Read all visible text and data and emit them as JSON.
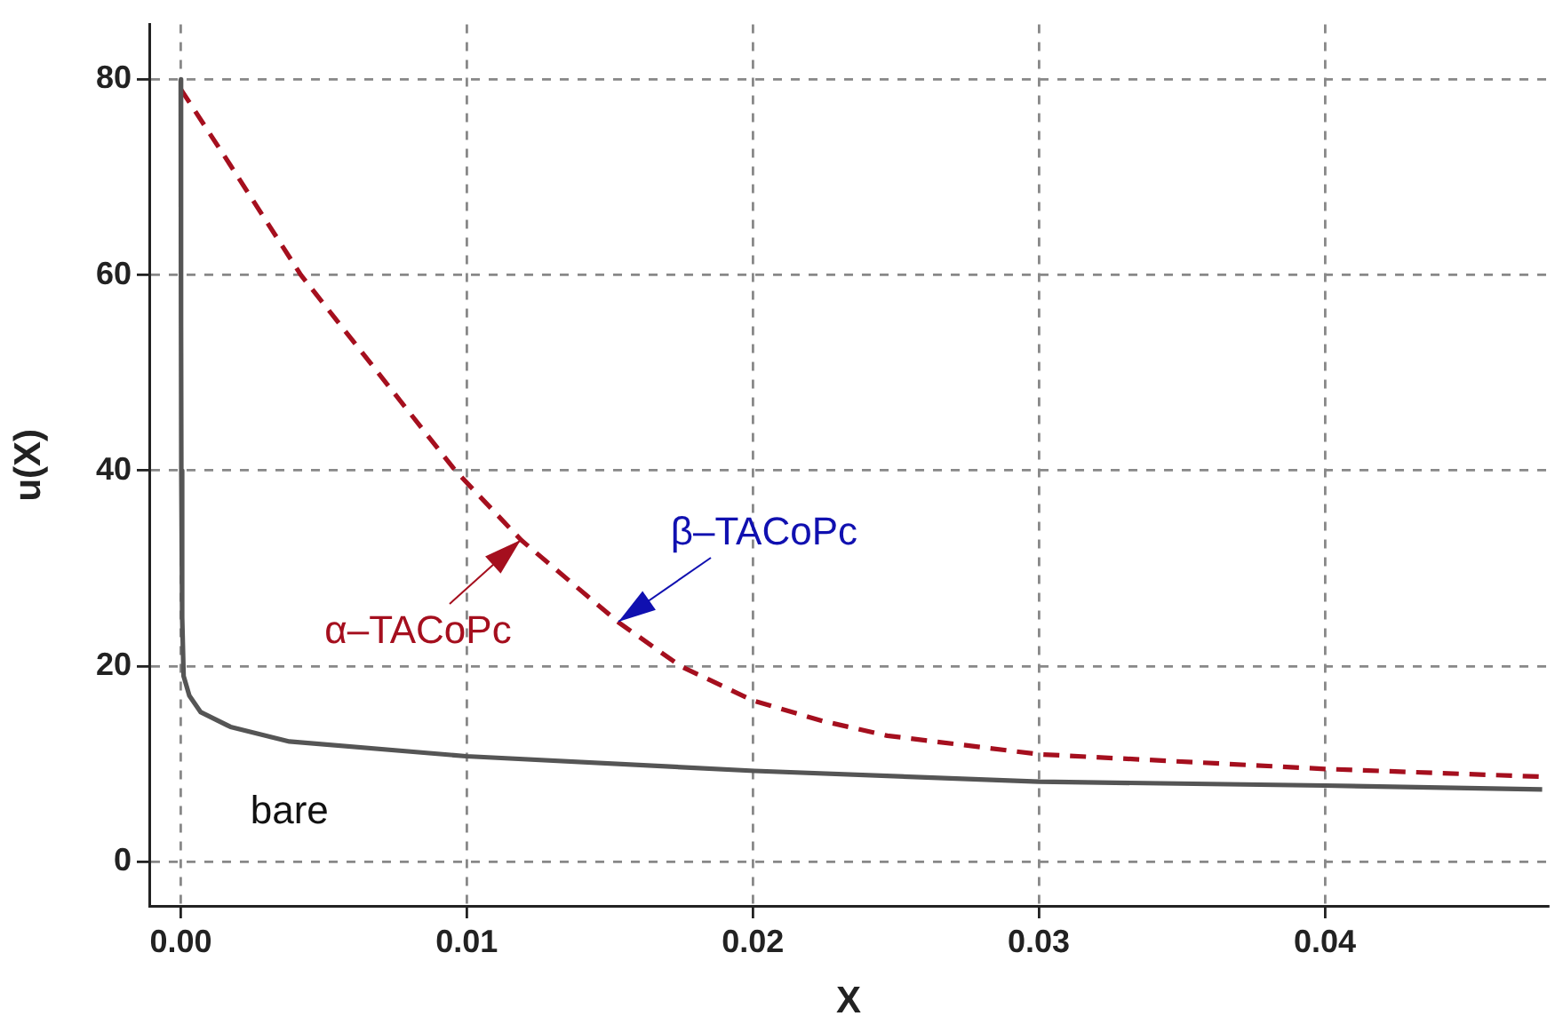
{
  "chart_data": {
    "type": "line",
    "xlabel": "X",
    "ylabel": "u(X)",
    "xlim": [
      -0.0011,
      0.0478
    ],
    "ylim": [
      -4.5,
      85.6
    ],
    "xticks": [
      {
        "value": 0,
        "label": "0.00"
      },
      {
        "value": 0.01,
        "label": "0.01"
      },
      {
        "value": 0.02,
        "label": "0.02"
      },
      {
        "value": 0.03,
        "label": "0.03"
      },
      {
        "value": 0.04,
        "label": "0.04"
      }
    ],
    "yticks": [
      0,
      20,
      40,
      60,
      80
    ],
    "grid": true,
    "legend": false,
    "marker": "none",
    "series": [
      {
        "color": "#555555",
        "line_style": "solid",
        "x": [
          0,
          1e-05,
          2e-05,
          5e-05,
          0.0001,
          0.0003,
          0.0007,
          0.00174,
          0.0038,
          0.00998,
          0.02006,
          0.03,
          0.04,
          0.0476
        ],
        "values": [
          80,
          55,
          40,
          25,
          19,
          17,
          15.3,
          13.8,
          12.3,
          10.8,
          9.3,
          8.2,
          7.8,
          7.4
        ]
      },
      {
        "color": "#a50f1e",
        "line_style": "dashed",
        "x": [
          0,
          0.00174,
          0.0042,
          0.0069,
          0.0096,
          0.0119,
          0.0153,
          0.01748,
          0.02,
          0.02244,
          0.0247,
          0.03,
          0.04,
          0.0476
        ],
        "values": [
          79,
          71.2,
          60,
          50,
          40,
          32.9,
          24.5,
          20,
          16.5,
          14.4,
          12.9,
          11,
          9.5,
          8.7
        ]
      }
    ],
    "annotations": [
      {
        "text": "α–TACoPc",
        "x": 0.0119,
        "y": 32.9
      },
      {
        "text": "β–TACoPc",
        "x": 0.0153,
        "y": 24.5
      },
      {
        "text": "bare",
        "x": 0.0038,
        "y": 12.3
      }
    ]
  }
}
